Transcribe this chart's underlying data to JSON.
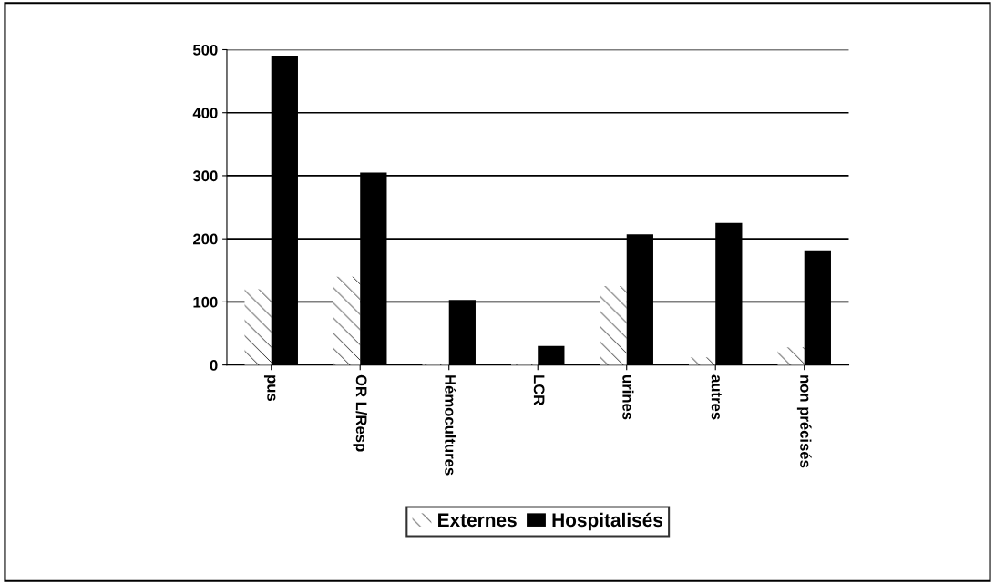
{
  "chart_data": {
    "type": "bar",
    "categories": [
      "pus",
      "OR L/Resp",
      "Hémocultures",
      "LCR",
      "urines",
      "autres",
      "non précisés"
    ],
    "series": [
      {
        "name": "Externes",
        "color": "#ffffff",
        "values": [
          120,
          140,
          2,
          2,
          125,
          12,
          28
        ]
      },
      {
        "name": "Hospitalisés",
        "color": "#000000",
        "values": [
          490,
          305,
          103,
          30,
          207,
          225,
          182
        ]
      }
    ],
    "ylim": [
      0,
      500
    ],
    "yticks": [
      0,
      100,
      200,
      300,
      400,
      500
    ],
    "grid": "y",
    "legend": "bottom"
  }
}
